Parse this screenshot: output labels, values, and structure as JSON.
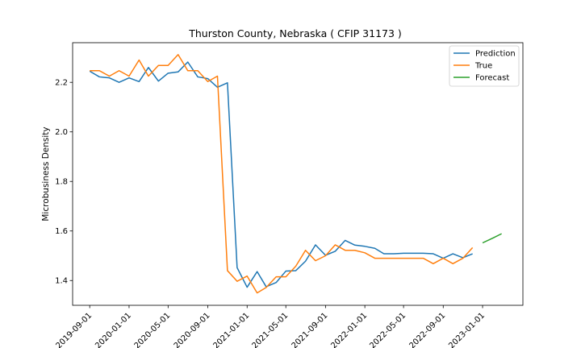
{
  "chart_data": {
    "type": "line",
    "title": "Thurston County, Nebraska ( CFIP 31173 )",
    "xlabel": "",
    "ylabel": "Microbusiness Density",
    "x_range": [
      "2019-07-10",
      "2023-05-06"
    ],
    "ylim": [
      1.3,
      2.36
    ],
    "y_ticks": [
      1.4,
      1.6,
      1.8,
      2.0,
      2.2
    ],
    "x_ticks": [
      "2019-09-01",
      "2020-01-01",
      "2020-05-01",
      "2020-09-01",
      "2021-01-01",
      "2021-05-01",
      "2021-09-01",
      "2022-01-01",
      "2022-05-01",
      "2022-09-01",
      "2023-01-01"
    ],
    "grid": false,
    "legend_position": "top-right",
    "series": [
      {
        "name": "Prediction",
        "color": "#1f77b4",
        "points": [
          [
            "2019-09-01",
            2.245
          ],
          [
            "2019-10-01",
            2.222
          ],
          [
            "2019-11-01",
            2.218
          ],
          [
            "2019-12-01",
            2.2
          ],
          [
            "2020-01-01",
            2.218
          ],
          [
            "2020-02-01",
            2.203
          ],
          [
            "2020-03-01",
            2.26
          ],
          [
            "2020-04-01",
            2.205
          ],
          [
            "2020-05-01",
            2.237
          ],
          [
            "2020-06-01",
            2.242
          ],
          [
            "2020-07-01",
            2.282
          ],
          [
            "2020-08-01",
            2.222
          ],
          [
            "2020-09-01",
            2.215
          ],
          [
            "2020-10-01",
            2.18
          ],
          [
            "2020-11-01",
            2.198
          ],
          [
            "2020-12-01",
            1.452
          ],
          [
            "2021-01-01",
            1.373
          ],
          [
            "2021-02-01",
            1.436
          ],
          [
            "2021-03-01",
            1.375
          ],
          [
            "2021-04-01",
            1.392
          ],
          [
            "2021-05-01",
            1.438
          ],
          [
            "2021-06-01",
            1.44
          ],
          [
            "2021-07-01",
            1.478
          ],
          [
            "2021-08-01",
            1.544
          ],
          [
            "2021-09-01",
            1.502
          ],
          [
            "2021-10-01",
            1.518
          ],
          [
            "2021-11-01",
            1.562
          ],
          [
            "2021-12-01",
            1.543
          ],
          [
            "2022-01-01",
            1.538
          ],
          [
            "2022-02-01",
            1.53
          ],
          [
            "2022-03-01",
            1.508
          ],
          [
            "2022-04-01",
            1.508
          ],
          [
            "2022-05-01",
            1.51
          ],
          [
            "2022-06-01",
            1.51
          ],
          [
            "2022-07-01",
            1.51
          ],
          [
            "2022-08-01",
            1.508
          ],
          [
            "2022-09-01",
            1.49
          ],
          [
            "2022-10-01",
            1.508
          ],
          [
            "2022-11-01",
            1.492
          ],
          [
            "2022-12-01",
            1.508
          ]
        ]
      },
      {
        "name": "True",
        "color": "#ff7f0e",
        "points": [
          [
            "2019-09-01",
            2.247
          ],
          [
            "2019-10-01",
            2.247
          ],
          [
            "2019-11-01",
            2.225
          ],
          [
            "2019-12-01",
            2.247
          ],
          [
            "2020-01-01",
            2.225
          ],
          [
            "2020-02-01",
            2.29
          ],
          [
            "2020-03-01",
            2.225
          ],
          [
            "2020-04-01",
            2.268
          ],
          [
            "2020-05-01",
            2.268
          ],
          [
            "2020-06-01",
            2.312
          ],
          [
            "2020-07-01",
            2.247
          ],
          [
            "2020-08-01",
            2.247
          ],
          [
            "2020-09-01",
            2.203
          ],
          [
            "2020-10-01",
            2.225
          ],
          [
            "2020-11-01",
            1.44
          ],
          [
            "2020-12-01",
            1.397
          ],
          [
            "2021-01-01",
            1.418
          ],
          [
            "2021-02-01",
            1.35
          ],
          [
            "2021-03-01",
            1.372
          ],
          [
            "2021-04-01",
            1.415
          ],
          [
            "2021-05-01",
            1.415
          ],
          [
            "2021-06-01",
            1.458
          ],
          [
            "2021-07-01",
            1.522
          ],
          [
            "2021-08-01",
            1.48
          ],
          [
            "2021-09-01",
            1.5
          ],
          [
            "2021-10-01",
            1.544
          ],
          [
            "2021-11-01",
            1.522
          ],
          [
            "2021-12-01",
            1.522
          ],
          [
            "2022-01-01",
            1.512
          ],
          [
            "2022-02-01",
            1.49
          ],
          [
            "2022-03-01",
            1.49
          ],
          [
            "2022-04-01",
            1.49
          ],
          [
            "2022-05-01",
            1.49
          ],
          [
            "2022-06-01",
            1.49
          ],
          [
            "2022-07-01",
            1.49
          ],
          [
            "2022-08-01",
            1.468
          ],
          [
            "2022-09-01",
            1.49
          ],
          [
            "2022-10-01",
            1.468
          ],
          [
            "2022-11-01",
            1.49
          ],
          [
            "2022-12-01",
            1.533
          ]
        ]
      },
      {
        "name": "Forecast",
        "color": "#2ca02c",
        "points": [
          [
            "2023-01-01",
            1.552
          ],
          [
            "2023-02-01",
            1.571
          ],
          [
            "2023-03-01",
            1.589
          ]
        ]
      }
    ]
  }
}
